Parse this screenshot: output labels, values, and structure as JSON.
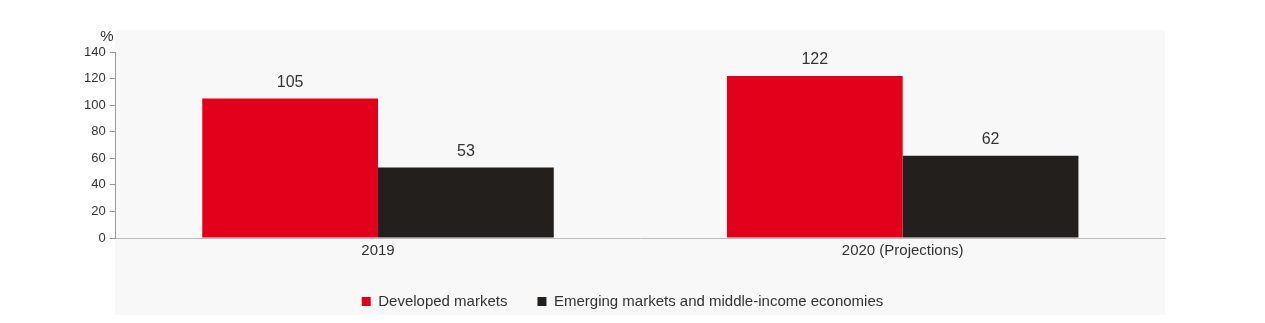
{
  "chart_data": {
    "type": "bar",
    "y_label": "%",
    "categories": [
      "2019",
      "2020 (Projections)"
    ],
    "series": [
      {
        "name": "Developed markets",
        "color": "#e2001a",
        "values": [
          105,
          122
        ]
      },
      {
        "name": "Emerging markets and middle-income economies",
        "color": "#231f1c",
        "values": [
          53,
          62
        ]
      }
    ],
    "ylim": [
      0,
      140
    ],
    "yticks": [
      0,
      20,
      40,
      60,
      80,
      100,
      120,
      140
    ],
    "grid": false,
    "legend": "bottom",
    "data_labels": true
  }
}
